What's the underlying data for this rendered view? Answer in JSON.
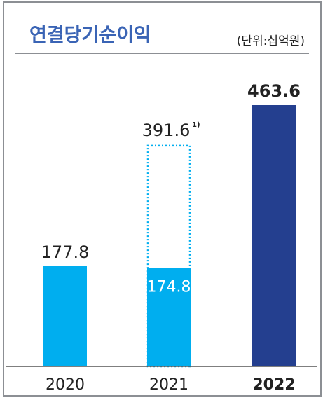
{
  "title": "연결당기순이익",
  "unit": "(단위:십억원)",
  "colors": {
    "bar_light": "#00aeef",
    "bar_dark": "#243f8f",
    "dotted_outline": "#00aeef",
    "title": "#3a64b5",
    "baseline": "#555555"
  },
  "chart_data": {
    "type": "bar",
    "categories": [
      "2020",
      "2021",
      "2022"
    ],
    "values": [
      177.8,
      174.8,
      463.6
    ],
    "value_labels": [
      "177.8",
      "174.8",
      "463.6"
    ],
    "reference": {
      "category": "2021",
      "value": 391.6,
      "label": "391.6",
      "footnote": "1)",
      "style": "dotted-outline"
    },
    "highlight": "2022",
    "title": "연결당기순이익",
    "xlabel": "",
    "ylabel": "",
    "ylim": [
      0,
      463.6
    ],
    "grid": false
  }
}
